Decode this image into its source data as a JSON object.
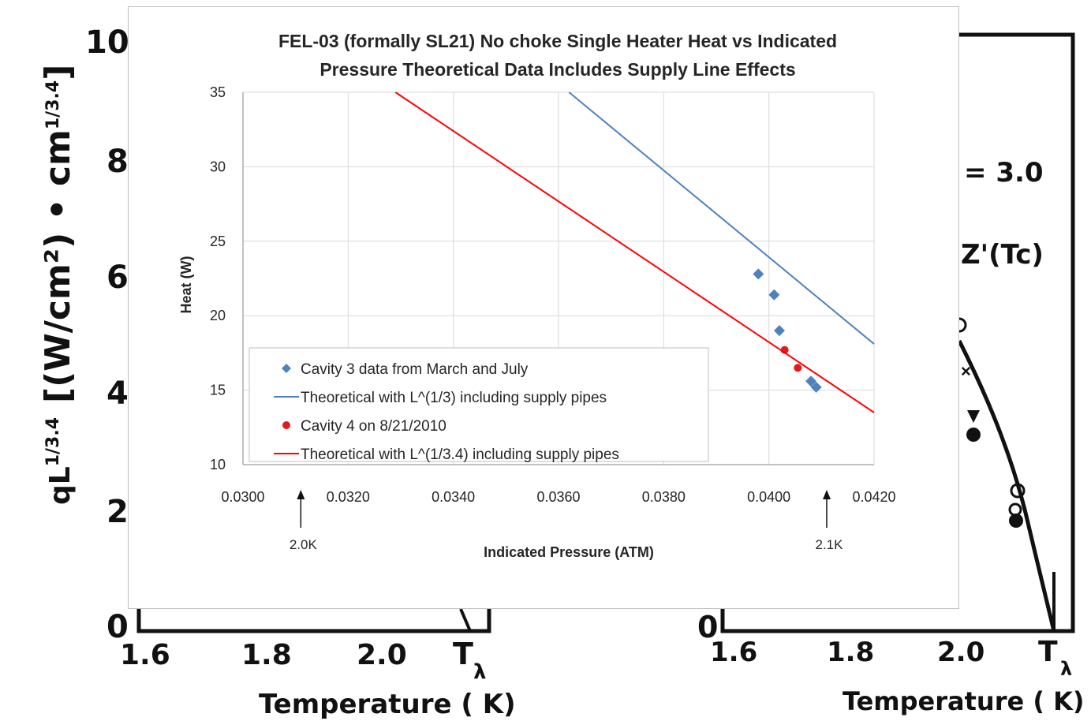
{
  "background": {
    "left_panel": {
      "y_tick_labels": [
        "10",
        "8",
        "6",
        "4",
        "2",
        "0"
      ],
      "y_label_main": "qL",
      "y_label_exponent": "1/3.4",
      "y_label_units": "[(W/cm²) • cm",
      "y_label_units_exp": "1/3.4",
      "y_label_close": "]",
      "x_tick_labels": [
        "1.6",
        "1.8",
        "2.0",
        "T",
        "λ"
      ],
      "x_label": "Temperature ( K)"
    },
    "right_panel": {
      "annotation_1": "= 3.0",
      "annotation_2": "Z'(Tc)",
      "y_tick_label": "0",
      "x_tick_labels": [
        "1.6",
        "1.8",
        "2.0",
        "T",
        "λ"
      ],
      "x_label": "Temperature ( K)"
    },
    "colors": {
      "ink": "#111111"
    }
  },
  "chart_data": {
    "type": "scatter",
    "title_line1": "FEL-03 (formally SL21) No choke Single Heater Heat vs Indicated",
    "title_line2": "Pressure Theoretical Data Includes Supply Line Effects",
    "xlabel": "Indicated Pressure (ATM)",
    "ylabel": "Heat (W)",
    "xlim": [
      0.03,
      0.042
    ],
    "ylim": [
      10,
      35
    ],
    "x_ticks": [
      "0.0300",
      "0.0320",
      "0.0340",
      "0.0360",
      "0.0380",
      "0.0400",
      "0.0420"
    ],
    "y_ticks": [
      "10",
      "15",
      "20",
      "25",
      "30",
      "35"
    ],
    "grid": true,
    "legend_position": "bottom-left inside plot",
    "series": [
      {
        "name": "Cavity 3 data from March and July",
        "kind": "marker-diamond",
        "color": "#4f81bd",
        "points": [
          [
            0.0398,
            22.8
          ],
          [
            0.0401,
            21.4
          ],
          [
            0.0402,
            19.0
          ],
          [
            0.0408,
            15.6
          ],
          [
            0.0409,
            15.2
          ]
        ]
      },
      {
        "name": "Theoretical with L^(1/3) including supply pipes",
        "kind": "line",
        "color": "#4f81bd",
        "points": [
          [
            0.0362,
            35.0
          ],
          [
            0.042,
            18.1
          ]
        ]
      },
      {
        "name": "Cavity 4 on 8/21/2010",
        "kind": "marker-circle",
        "color": "#e31a1c",
        "points": [
          [
            0.0403,
            17.7
          ],
          [
            0.04055,
            16.5
          ]
        ]
      },
      {
        "name": "Theoretical with L^(1/3.4) including supply pipes",
        "kind": "line",
        "color": "#ff0000",
        "points": [
          [
            0.0329,
            35.0
          ],
          [
            0.042,
            13.5
          ]
        ]
      }
    ],
    "annotations": [
      {
        "text": "2.0K",
        "x": 0.0311
      },
      {
        "text": "2.1K",
        "x": 0.0411
      }
    ]
  }
}
